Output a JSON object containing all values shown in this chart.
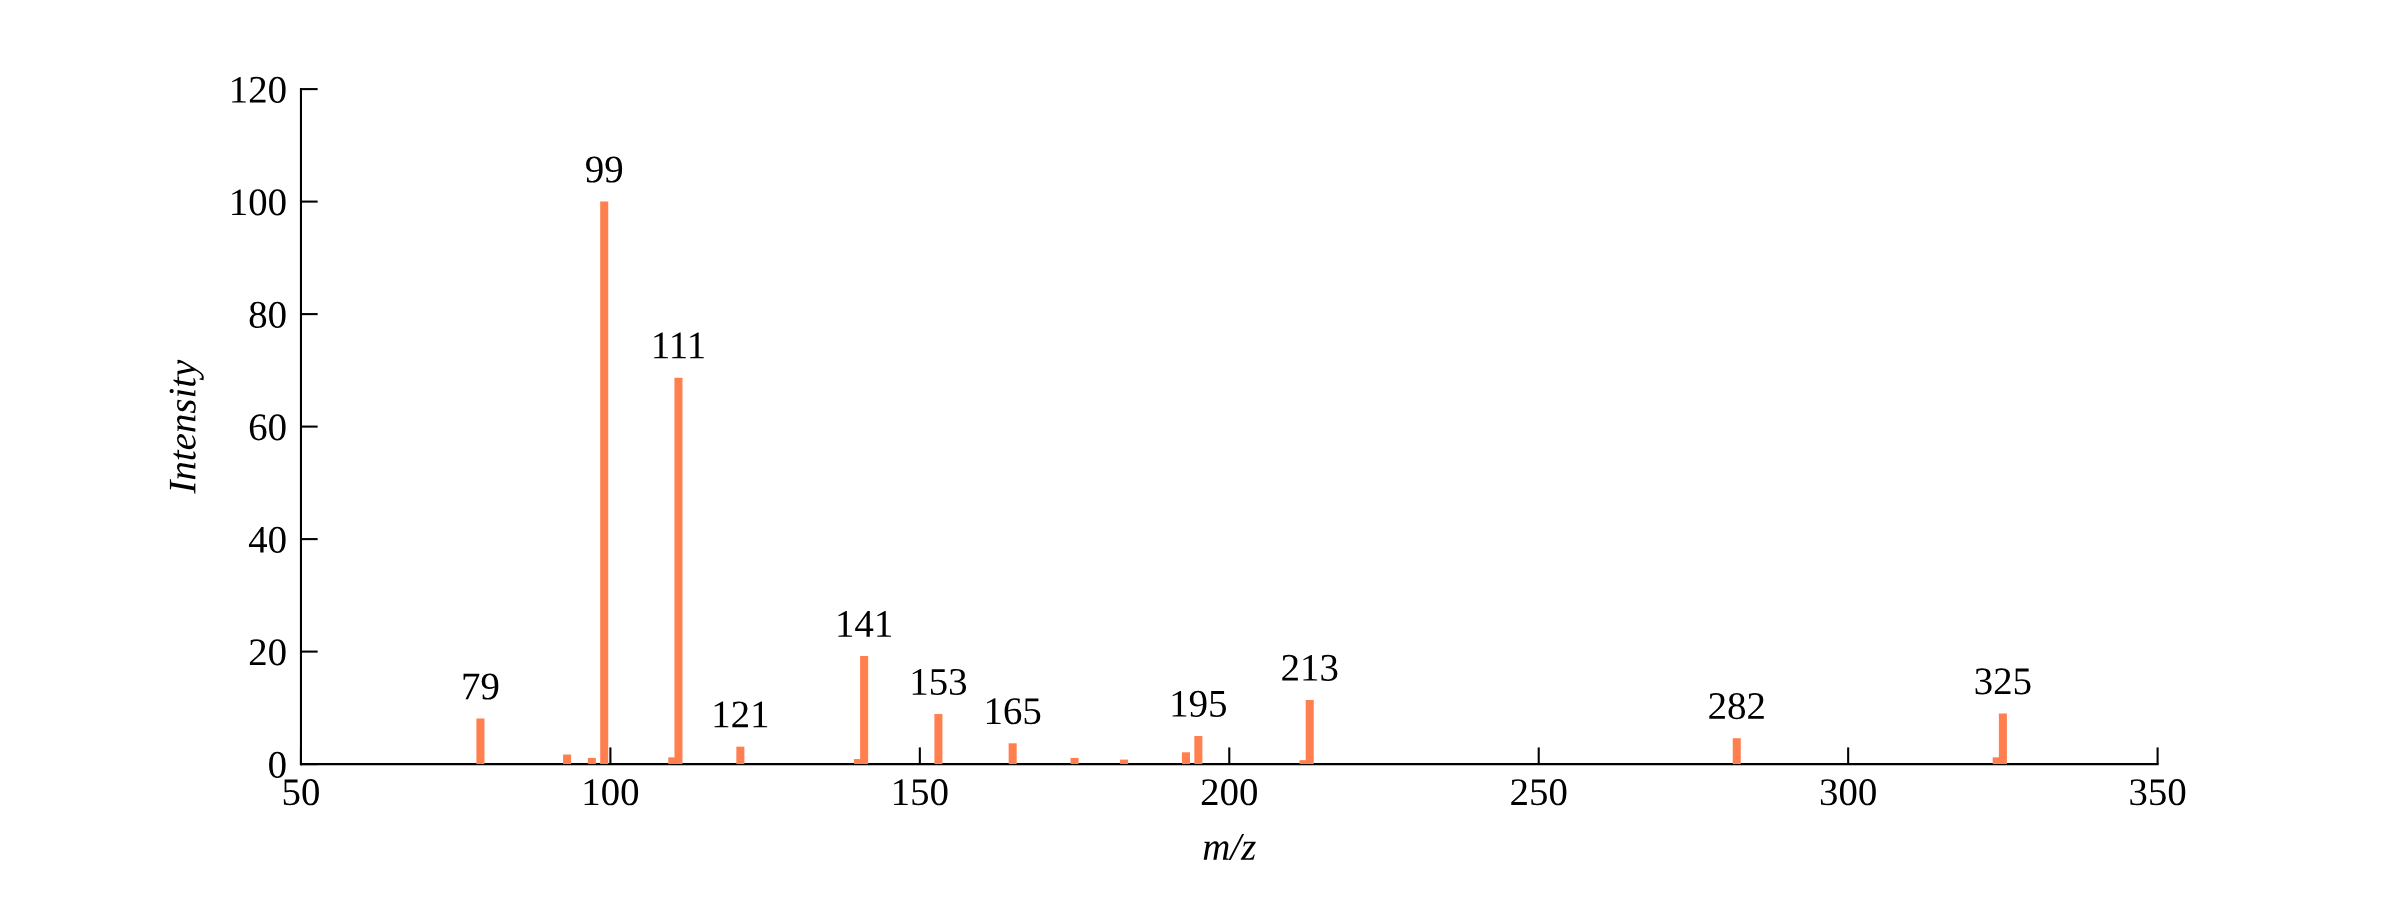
{
  "chart_data": {
    "type": "bar",
    "xlabel": "m/z",
    "ylabel": "Intensity",
    "x": [
      79,
      93,
      97,
      99,
      110,
      111,
      121,
      140,
      141,
      153,
      165,
      175,
      183,
      193,
      195,
      212,
      213,
      282,
      324,
      325
    ],
    "series": [
      {
        "color": "#ff7f4f",
        "values": [
          8.1,
          1.7,
          1.1,
          100,
          1.2,
          68.7,
          3.1,
          0.9,
          19.2,
          8.9,
          3.7,
          1.1,
          0.8,
          2.1,
          5.0,
          0.7,
          11.4,
          4.6,
          1.2,
          9.0
        ]
      }
    ],
    "annotations": [
      {
        "text": "79",
        "x": 79,
        "y": 8.1
      },
      {
        "text": "99",
        "x": 99,
        "y": 100
      },
      {
        "text": "111",
        "x": 111,
        "y": 68.7
      },
      {
        "text": "121",
        "x": 121,
        "y": 3.1
      },
      {
        "text": "141",
        "x": 141,
        "y": 19.2
      },
      {
        "text": "153",
        "x": 153,
        "y": 8.9
      },
      {
        "text": "165",
        "x": 165,
        "y": 3.7
      },
      {
        "text": "195",
        "x": 195,
        "y": 5.0
      },
      {
        "text": "213",
        "x": 213,
        "y": 11.4
      },
      {
        "text": "282",
        "x": 282,
        "y": 4.6
      },
      {
        "text": "325",
        "x": 325,
        "y": 9.0
      }
    ],
    "xlim": [
      50,
      350
    ],
    "xticks": [
      50,
      100,
      150,
      200,
      250,
      300,
      350
    ],
    "ylim": [
      0,
      120
    ],
    "yticks": [
      0,
      20,
      40,
      60,
      80,
      100,
      120
    ],
    "grid": false
  }
}
